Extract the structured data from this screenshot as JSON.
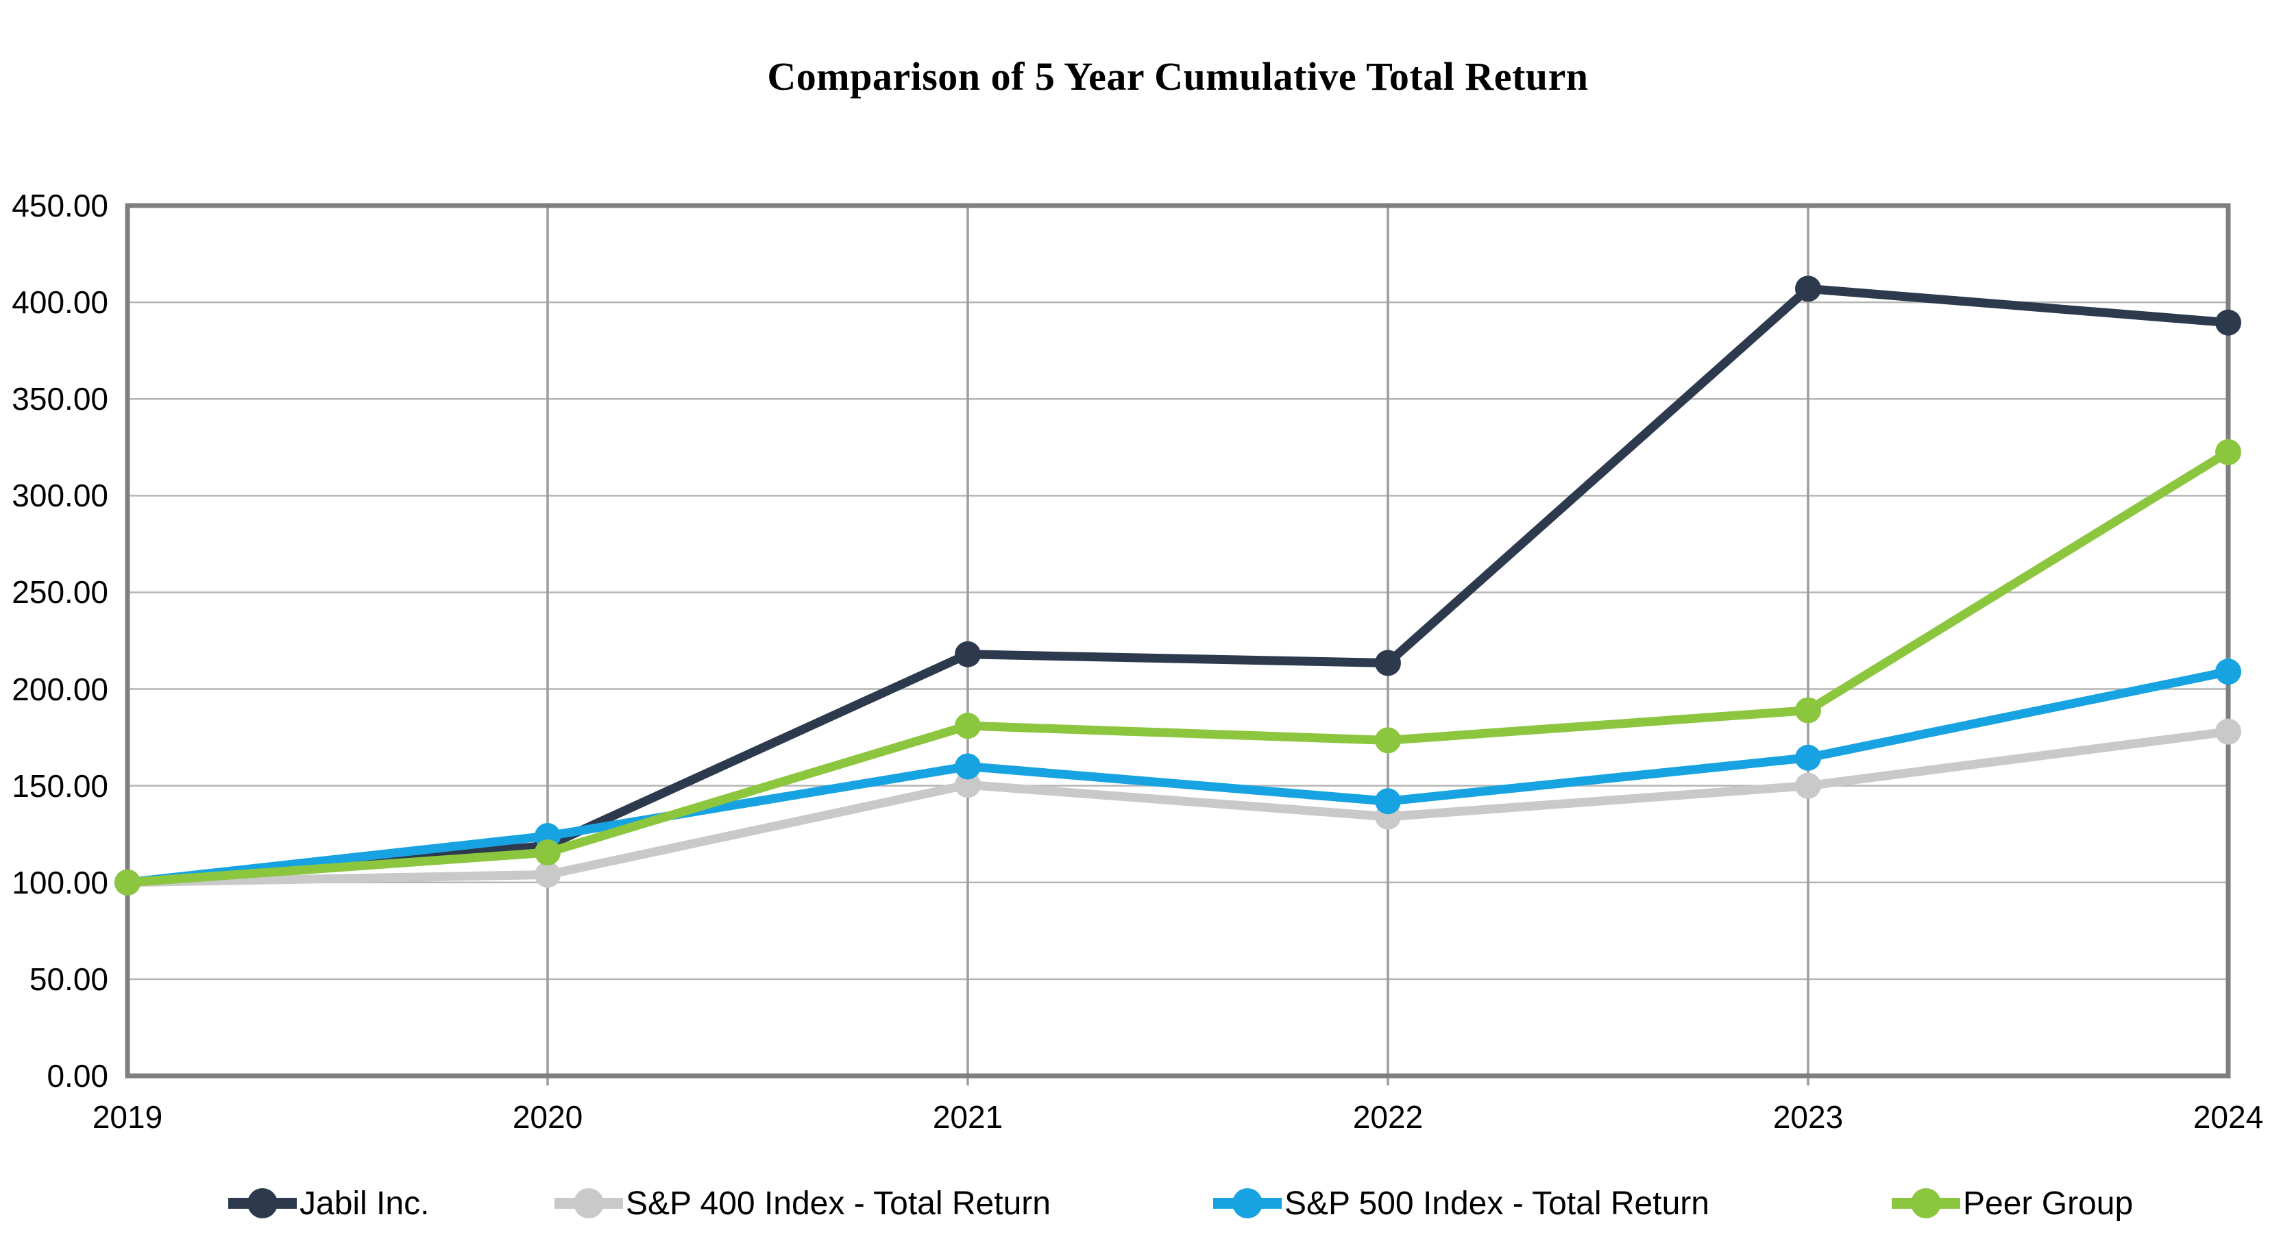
{
  "chart_data": {
    "type": "line",
    "title": "Comparison of 5 Year Cumulative Total Return",
    "categories": [
      "2019",
      "2020",
      "2021",
      "2022",
      "2023",
      "2024"
    ],
    "series": [
      {
        "name": "Jabil Inc.",
        "color": "#2D3A4E",
        "values": [
          100.0,
          119.0,
          218.0,
          213.5,
          407.0,
          389.5
        ]
      },
      {
        "name": "S&P 400 Index - Total Return",
        "color": "#C9C9C9",
        "values": [
          100.0,
          104.0,
          150.5,
          134.0,
          150.0,
          178.0
        ]
      },
      {
        "name": "S&P 500 Index - Total Return",
        "color": "#17A3E1",
        "values": [
          100.0,
          124.0,
          160.0,
          142.0,
          164.5,
          209.0
        ]
      },
      {
        "name": "Peer Group",
        "color": "#8CC63F",
        "values": [
          100.0,
          115.5,
          181.0,
          173.5,
          189.0,
          322.5
        ]
      }
    ],
    "ylim": [
      0,
      450
    ],
    "y_tick_step": 50,
    "y_tick_labels": [
      "450.00",
      "400.00",
      "350.00",
      "300.00",
      "250.00",
      "200.00",
      "150.00",
      "100.00",
      "50.00",
      "0.00"
    ],
    "x_tick_labels": [
      "2019",
      "2020",
      "2021",
      "2022",
      "2023",
      "2024"
    ],
    "grid": true,
    "legend_position": "bottom",
    "plot_border_color": "#7F7F7F",
    "h_gridline_color": "#B5B5B5",
    "v_gridline_color": "#9C9C9C",
    "background_color": "#FFFFFF",
    "text_color": "#000000"
  }
}
